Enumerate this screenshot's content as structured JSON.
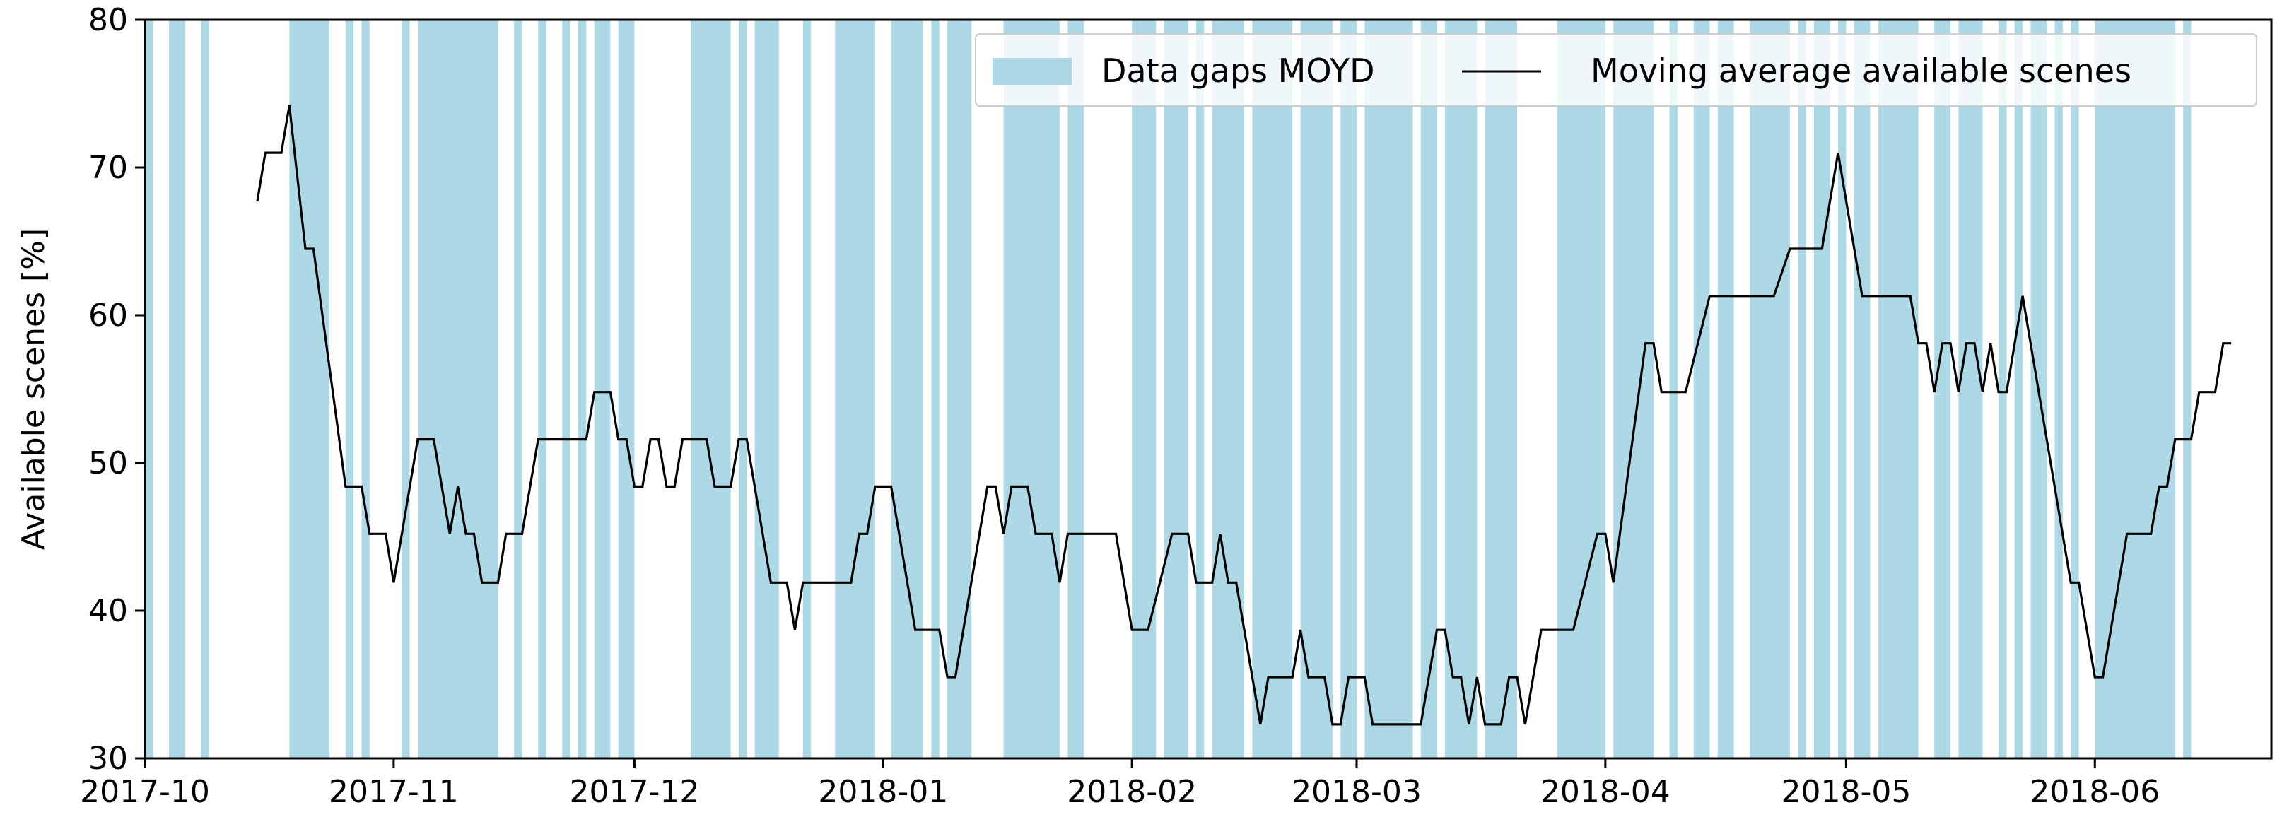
{
  "chart_data": {
    "type": "line",
    "title": "",
    "xlabel": "",
    "ylabel": "Available scenes [%]",
    "ylim": [
      30,
      80
    ],
    "xlim": [
      "2017-10-01",
      "2018-06-23"
    ],
    "y_ticks": [
      30,
      40,
      50,
      60,
      70,
      80
    ],
    "x_ticks": [
      "2017-10",
      "2017-11",
      "2017-12",
      "2018-01",
      "2018-02",
      "2018-03",
      "2018-04",
      "2018-05",
      "2018-06"
    ],
    "grid": false,
    "legend_position": "top-right",
    "colors": {
      "gap": "#add8e6",
      "line": "#000000",
      "axis": "#000000",
      "legend_frame": "#cccccc"
    },
    "legend": [
      {
        "label": "Data gaps MOYD",
        "kind": "patch"
      },
      {
        "label": "Moving average available scenes",
        "kind": "line"
      }
    ],
    "gap_series_name": "Data gaps MOYD",
    "gaps": [
      [
        "2017-10-01",
        "2017-10-02"
      ],
      [
        "2017-10-04",
        "2017-10-06"
      ],
      [
        "2017-10-08",
        "2017-10-09"
      ],
      [
        "2017-10-19",
        "2017-10-24"
      ],
      [
        "2017-10-26",
        "2017-10-27"
      ],
      [
        "2017-10-28",
        "2017-10-29"
      ],
      [
        "2017-11-02",
        "2017-11-03"
      ],
      [
        "2017-11-04",
        "2017-11-14"
      ],
      [
        "2017-11-16",
        "2017-11-17"
      ],
      [
        "2017-11-19",
        "2017-11-20"
      ],
      [
        "2017-11-22",
        "2017-11-23"
      ],
      [
        "2017-11-24",
        "2017-11-25"
      ],
      [
        "2017-11-26",
        "2017-11-28"
      ],
      [
        "2017-11-29",
        "2017-12-01"
      ],
      [
        "2017-12-08",
        "2017-12-13"
      ],
      [
        "2017-12-14",
        "2017-12-15"
      ],
      [
        "2017-12-16",
        "2017-12-19"
      ],
      [
        "2017-12-22",
        "2017-12-23"
      ],
      [
        "2017-12-26",
        "2017-12-31"
      ],
      [
        "2018-01-02",
        "2018-01-06"
      ],
      [
        "2018-01-07",
        "2018-01-08"
      ],
      [
        "2018-01-09",
        "2018-01-12"
      ],
      [
        "2018-01-16",
        "2018-01-23"
      ],
      [
        "2018-01-24",
        "2018-01-26"
      ],
      [
        "2018-02-01",
        "2018-02-04"
      ],
      [
        "2018-02-05",
        "2018-02-08"
      ],
      [
        "2018-02-09",
        "2018-02-10"
      ],
      [
        "2018-02-11",
        "2018-02-15"
      ],
      [
        "2018-02-16",
        "2018-02-21"
      ],
      [
        "2018-02-22",
        "2018-02-26"
      ],
      [
        "2018-02-27",
        "2018-03-01"
      ],
      [
        "2018-03-02",
        "2018-03-08"
      ],
      [
        "2018-03-09",
        "2018-03-11"
      ],
      [
        "2018-03-12",
        "2018-03-16"
      ],
      [
        "2018-03-17",
        "2018-03-21"
      ],
      [
        "2018-03-26",
        "2018-04-01"
      ],
      [
        "2018-04-02",
        "2018-04-07"
      ],
      [
        "2018-04-09",
        "2018-04-10"
      ],
      [
        "2018-04-12",
        "2018-04-14"
      ],
      [
        "2018-04-15",
        "2018-04-17"
      ],
      [
        "2018-04-19",
        "2018-04-24"
      ],
      [
        "2018-04-25",
        "2018-04-26"
      ],
      [
        "2018-04-27",
        "2018-04-29"
      ],
      [
        "2018-04-30",
        "2018-05-01"
      ],
      [
        "2018-05-02",
        "2018-05-04"
      ],
      [
        "2018-05-05",
        "2018-05-10"
      ],
      [
        "2018-05-12",
        "2018-05-14"
      ],
      [
        "2018-05-15",
        "2018-05-18"
      ],
      [
        "2018-05-20",
        "2018-05-21"
      ],
      [
        "2018-05-22",
        "2018-05-23"
      ],
      [
        "2018-05-24",
        "2018-05-26"
      ],
      [
        "2018-05-27",
        "2018-05-28"
      ],
      [
        "2018-05-29",
        "2018-05-30"
      ],
      [
        "2018-06-01",
        "2018-06-11"
      ],
      [
        "2018-06-12",
        "2018-06-13"
      ]
    ],
    "series": [
      {
        "name": "Moving average available scenes",
        "points": [
          [
            "2017-10-15",
            67.7
          ],
          [
            "2017-10-16",
            71.0
          ],
          [
            "2017-10-18",
            71.0
          ],
          [
            "2017-10-19",
            74.2
          ],
          [
            "2017-10-21",
            64.5
          ],
          [
            "2017-10-22",
            64.5
          ],
          [
            "2017-10-26",
            48.4
          ],
          [
            "2017-10-28",
            48.4
          ],
          [
            "2017-10-29",
            45.2
          ],
          [
            "2017-10-31",
            45.2
          ],
          [
            "2017-11-01",
            41.9
          ],
          [
            "2017-11-04",
            51.6
          ],
          [
            "2017-11-06",
            51.6
          ],
          [
            "2017-11-08",
            45.2
          ],
          [
            "2017-11-09",
            48.4
          ],
          [
            "2017-11-10",
            45.2
          ],
          [
            "2017-11-11",
            45.2
          ],
          [
            "2017-11-12",
            41.9
          ],
          [
            "2017-11-14",
            41.9
          ],
          [
            "2017-11-15",
            45.2
          ],
          [
            "2017-11-17",
            45.2
          ],
          [
            "2017-11-19",
            51.6
          ],
          [
            "2017-11-25",
            51.6
          ],
          [
            "2017-11-26",
            54.8
          ],
          [
            "2017-11-28",
            54.8
          ],
          [
            "2017-11-29",
            51.6
          ],
          [
            "2017-11-30",
            51.6
          ],
          [
            "2017-12-01",
            48.4
          ],
          [
            "2017-12-02",
            48.4
          ],
          [
            "2017-12-03",
            51.6
          ],
          [
            "2017-12-04",
            51.6
          ],
          [
            "2017-12-05",
            48.4
          ],
          [
            "2017-12-06",
            48.4
          ],
          [
            "2017-12-07",
            51.6
          ],
          [
            "2017-12-10",
            51.6
          ],
          [
            "2017-12-11",
            48.4
          ],
          [
            "2017-12-13",
            48.4
          ],
          [
            "2017-12-14",
            51.6
          ],
          [
            "2017-12-15",
            51.6
          ],
          [
            "2017-12-18",
            41.9
          ],
          [
            "2017-12-20",
            41.9
          ],
          [
            "2017-12-21",
            38.7
          ],
          [
            "2017-12-22",
            41.9
          ],
          [
            "2017-12-28",
            41.9
          ],
          [
            "2017-12-29",
            45.2
          ],
          [
            "2017-12-30",
            45.2
          ],
          [
            "2017-12-31",
            48.4
          ],
          [
            "2018-01-02",
            48.4
          ],
          [
            "2018-01-05",
            38.7
          ],
          [
            "2018-01-08",
            38.7
          ],
          [
            "2018-01-09",
            35.5
          ],
          [
            "2018-01-10",
            35.5
          ],
          [
            "2018-01-14",
            48.4
          ],
          [
            "2018-01-15",
            48.4
          ],
          [
            "2018-01-16",
            45.2
          ],
          [
            "2018-01-17",
            48.4
          ],
          [
            "2018-01-19",
            48.4
          ],
          [
            "2018-01-20",
            45.2
          ],
          [
            "2018-01-22",
            45.2
          ],
          [
            "2018-01-23",
            41.9
          ],
          [
            "2018-01-24",
            45.2
          ],
          [
            "2018-01-30",
            45.2
          ],
          [
            "2018-02-01",
            38.7
          ],
          [
            "2018-02-03",
            38.7
          ],
          [
            "2018-02-06",
            45.2
          ],
          [
            "2018-02-08",
            45.2
          ],
          [
            "2018-02-09",
            41.9
          ],
          [
            "2018-02-11",
            41.9
          ],
          [
            "2018-02-12",
            45.2
          ],
          [
            "2018-02-13",
            41.9
          ],
          [
            "2018-02-14",
            41.9
          ],
          [
            "2018-02-17",
            32.3
          ],
          [
            "2018-02-18",
            35.5
          ],
          [
            "2018-02-21",
            35.5
          ],
          [
            "2018-02-22",
            38.7
          ],
          [
            "2018-02-23",
            35.5
          ],
          [
            "2018-02-25",
            35.5
          ],
          [
            "2018-02-26",
            32.3
          ],
          [
            "2018-02-27",
            32.3
          ],
          [
            "2018-02-28",
            35.5
          ],
          [
            "2018-03-02",
            35.5
          ],
          [
            "2018-03-03",
            32.3
          ],
          [
            "2018-03-09",
            32.3
          ],
          [
            "2018-03-11",
            38.7
          ],
          [
            "2018-03-12",
            38.7
          ],
          [
            "2018-03-13",
            35.5
          ],
          [
            "2018-03-14",
            35.5
          ],
          [
            "2018-03-15",
            32.3
          ],
          [
            "2018-03-16",
            35.5
          ],
          [
            "2018-03-17",
            32.3
          ],
          [
            "2018-03-19",
            32.3
          ],
          [
            "2018-03-20",
            35.5
          ],
          [
            "2018-03-21",
            35.5
          ],
          [
            "2018-03-22",
            32.3
          ],
          [
            "2018-03-24",
            38.7
          ],
          [
            "2018-03-28",
            38.7
          ],
          [
            "2018-03-31",
            45.2
          ],
          [
            "2018-04-01",
            45.2
          ],
          [
            "2018-04-02",
            41.9
          ],
          [
            "2018-04-06",
            58.1
          ],
          [
            "2018-04-07",
            58.1
          ],
          [
            "2018-04-08",
            54.8
          ],
          [
            "2018-04-11",
            54.8
          ],
          [
            "2018-04-14",
            61.3
          ],
          [
            "2018-04-22",
            61.3
          ],
          [
            "2018-04-24",
            64.5
          ],
          [
            "2018-04-28",
            64.5
          ],
          [
            "2018-04-30",
            71.0
          ],
          [
            "2018-05-03",
            61.3
          ],
          [
            "2018-05-09",
            61.3
          ],
          [
            "2018-05-10",
            58.1
          ],
          [
            "2018-05-11",
            58.1
          ],
          [
            "2018-05-12",
            54.8
          ],
          [
            "2018-05-13",
            58.1
          ],
          [
            "2018-05-14",
            58.1
          ],
          [
            "2018-05-15",
            54.8
          ],
          [
            "2018-05-16",
            58.1
          ],
          [
            "2018-05-17",
            58.1
          ],
          [
            "2018-05-18",
            54.8
          ],
          [
            "2018-05-19",
            58.1
          ],
          [
            "2018-05-20",
            54.8
          ],
          [
            "2018-05-21",
            54.8
          ],
          [
            "2018-05-23",
            61.3
          ],
          [
            "2018-05-29",
            41.9
          ],
          [
            "2018-05-30",
            41.9
          ],
          [
            "2018-06-01",
            35.5
          ],
          [
            "2018-06-02",
            35.5
          ],
          [
            "2018-06-05",
            45.2
          ],
          [
            "2018-06-08",
            45.2
          ],
          [
            "2018-06-09",
            48.4
          ],
          [
            "2018-06-10",
            48.4
          ],
          [
            "2018-06-11",
            51.6
          ],
          [
            "2018-06-13",
            51.6
          ],
          [
            "2018-06-14",
            54.8
          ],
          [
            "2018-06-16",
            54.8
          ],
          [
            "2018-06-17",
            58.1
          ],
          [
            "2018-06-18",
            58.1
          ]
        ]
      }
    ]
  }
}
